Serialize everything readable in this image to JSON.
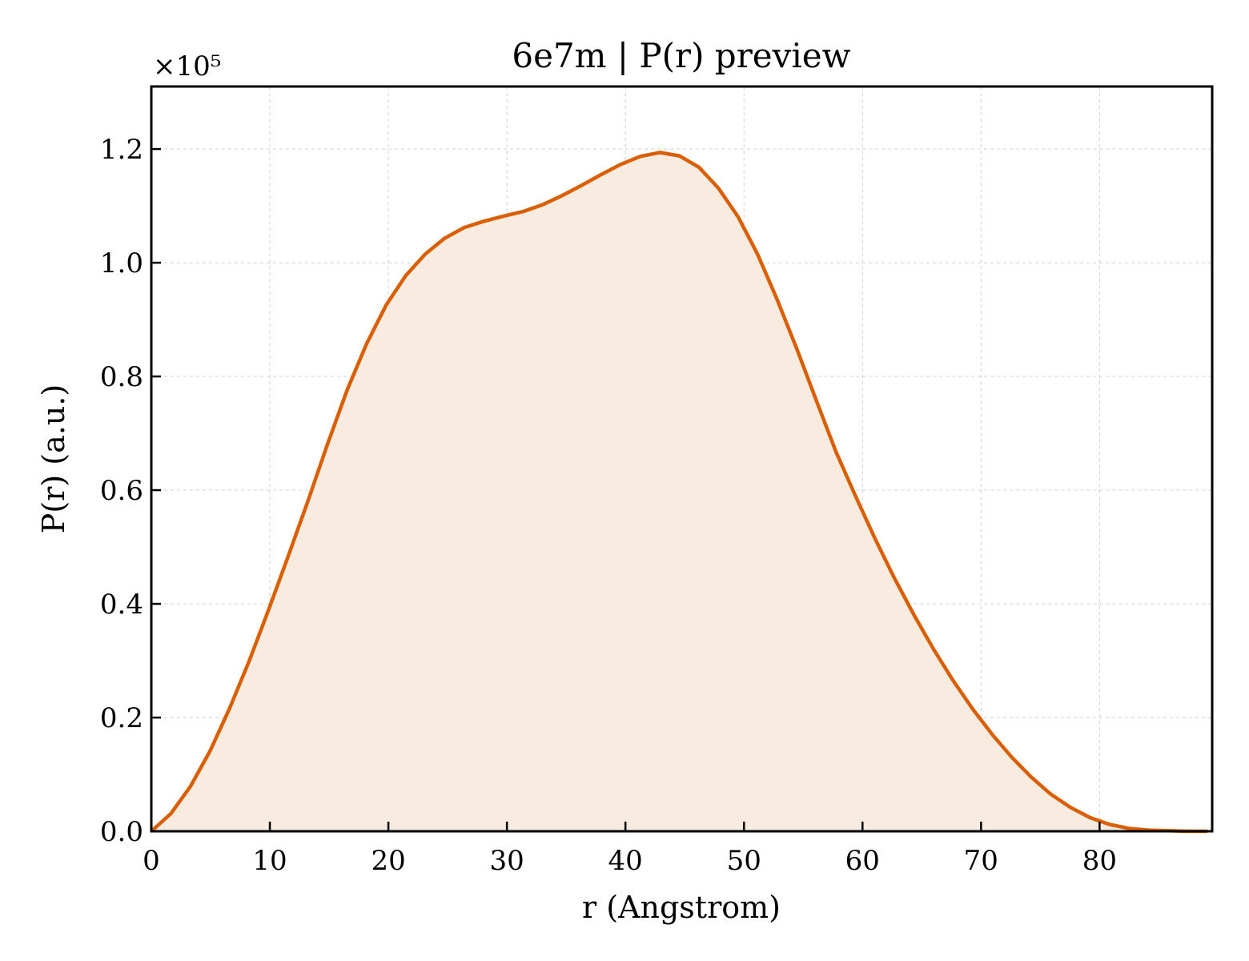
{
  "chart_data": {
    "type": "area",
    "title": "6e7m | P(r) preview",
    "xlabel": "r (Angstrom)",
    "ylabel": "P(r) (a.u.)",
    "y_multiplier_label": "×10⁵",
    "y_scale_factor": 100000,
    "xlim": [
      0,
      89.5
    ],
    "ylim": [
      0,
      1.31
    ],
    "x_ticks": [
      0,
      10,
      20,
      30,
      40,
      50,
      60,
      70,
      80
    ],
    "y_ticks": [
      0.0,
      0.2,
      0.4,
      0.6,
      0.8,
      1.0,
      1.2
    ],
    "y_tick_labels": [
      "0.0",
      "0.2",
      "0.4",
      "0.6",
      "0.8",
      "1.0",
      "1.2"
    ],
    "x_tick_labels": [
      "0",
      "10",
      "20",
      "30",
      "40",
      "50",
      "60",
      "70",
      "80"
    ],
    "grid": true,
    "line_color": "#d95f02",
    "fill_color": "#f8ebe0",
    "series": [
      {
        "x": [
          0,
          1.65,
          3.3,
          4.95,
          6.6,
          8.25,
          9.9,
          11.55,
          13.2,
          14.85,
          16.5,
          18.15,
          19.8,
          21.45,
          23.1,
          24.75,
          26.4,
          28.05,
          29.7,
          31.35,
          33.0,
          34.65,
          36.3,
          37.95,
          39.6,
          41.25,
          42.9,
          44.55,
          46.2,
          47.85,
          49.5,
          51.15,
          52.8,
          54.45,
          56.1,
          57.75,
          59.4,
          61.05,
          62.7,
          64.35,
          66.0,
          67.65,
          69.3,
          70.95,
          72.6,
          74.25,
          75.9,
          77.55,
          79.2,
          80.85,
          82.5,
          84.15,
          85.8,
          87.45,
          89.1
        ],
        "y": [
          0.0,
          0.031,
          0.079,
          0.141,
          0.216,
          0.299,
          0.39,
          0.484,
          0.58,
          0.68,
          0.775,
          0.857,
          0.925,
          0.977,
          1.015,
          1.043,
          1.062,
          1.073,
          1.082,
          1.09,
          1.102,
          1.118,
          1.136,
          1.155,
          1.173,
          1.187,
          1.194,
          1.188,
          1.168,
          1.131,
          1.081,
          1.015,
          0.935,
          0.849,
          0.758,
          0.668,
          0.59,
          0.515,
          0.445,
          0.38,
          0.32,
          0.265,
          0.215,
          0.17,
          0.13,
          0.095,
          0.065,
          0.042,
          0.024,
          0.012,
          0.005,
          0.002,
          0.001,
          0.0,
          0.0
        ]
      }
    ]
  }
}
